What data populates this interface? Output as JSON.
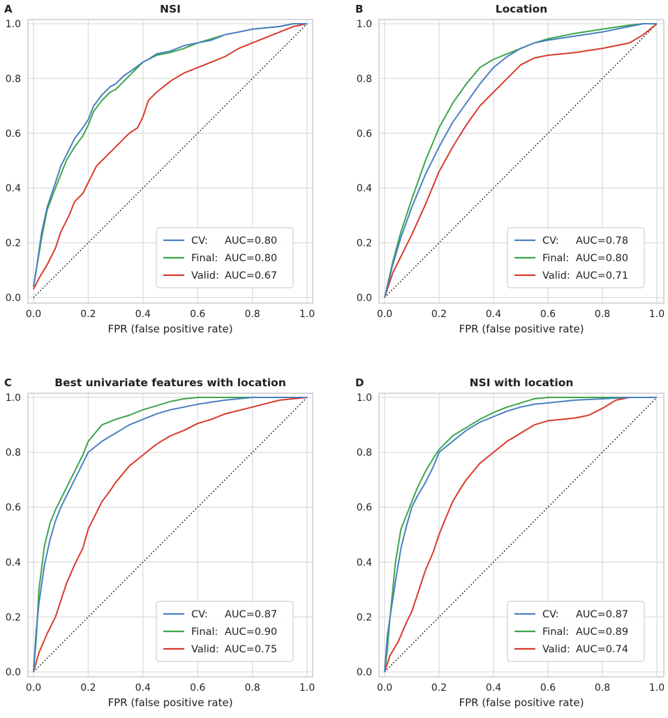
{
  "colors": {
    "cv": "#4a7fc1",
    "final": "#3aa64a",
    "valid": "#d93a2b",
    "grid": "#dcdcdc",
    "frame": "#cfcfcf",
    "diagonal": "#111111",
    "text": "#222222"
  },
  "chart_data": [
    {
      "panel": "A",
      "type": "line",
      "title": "NSI",
      "xlabel": "FPR (false positive rate)",
      "ylabel": "",
      "xlim": [
        0,
        1
      ],
      "ylim": [
        0,
        1
      ],
      "xticks": [
        "0.0",
        "0.2",
        "0.4",
        "0.6",
        "0.8",
        "1.0"
      ],
      "yticks": [
        "0.0",
        "0.2",
        "0.4",
        "0.6",
        "0.8",
        "1.0"
      ],
      "grid": true,
      "legend_position": "lower-right",
      "reference_line": "diagonal",
      "series": [
        {
          "key": "cv",
          "name": "CV:",
          "auc": "AUC=0.80",
          "x": [
            0,
            0.01,
            0.03,
            0.05,
            0.08,
            0.1,
            0.12,
            0.15,
            0.18,
            0.2,
            0.22,
            0.25,
            0.28,
            0.3,
            0.33,
            0.36,
            0.4,
            0.42,
            0.45,
            0.5,
            0.55,
            0.6,
            0.65,
            0.7,
            0.75,
            0.8,
            0.85,
            0.9,
            0.95,
            1.0
          ],
          "y": [
            0.04,
            0.1,
            0.24,
            0.33,
            0.42,
            0.48,
            0.52,
            0.58,
            0.62,
            0.65,
            0.7,
            0.74,
            0.77,
            0.78,
            0.81,
            0.83,
            0.86,
            0.87,
            0.89,
            0.9,
            0.92,
            0.93,
            0.94,
            0.96,
            0.97,
            0.98,
            0.985,
            0.99,
            1.0,
            1.0
          ]
        },
        {
          "key": "final",
          "name": "Final:",
          "auc": "AUC=0.80",
          "x": [
            0,
            0.01,
            0.03,
            0.05,
            0.08,
            0.1,
            0.12,
            0.15,
            0.18,
            0.2,
            0.22,
            0.25,
            0.28,
            0.3,
            0.33,
            0.36,
            0.4,
            0.42,
            0.45,
            0.5,
            0.55,
            0.6,
            0.65,
            0.7,
            0.75,
            0.8,
            0.85,
            0.9,
            0.95,
            1.0
          ],
          "y": [
            0.04,
            0.1,
            0.22,
            0.32,
            0.4,
            0.45,
            0.5,
            0.55,
            0.59,
            0.63,
            0.68,
            0.72,
            0.75,
            0.76,
            0.79,
            0.82,
            0.86,
            0.87,
            0.885,
            0.895,
            0.91,
            0.93,
            0.945,
            0.96,
            0.97,
            0.98,
            0.985,
            0.99,
            1.0,
            1.0
          ]
        },
        {
          "key": "valid",
          "name": "Valid:",
          "auc": "AUC=0.67",
          "x": [
            0,
            0.02,
            0.05,
            0.08,
            0.1,
            0.13,
            0.15,
            0.18,
            0.2,
            0.23,
            0.25,
            0.28,
            0.3,
            0.33,
            0.35,
            0.38,
            0.4,
            0.42,
            0.45,
            0.5,
            0.55,
            0.6,
            0.65,
            0.7,
            0.75,
            0.8,
            0.85,
            0.9,
            0.95,
            1.0
          ],
          "y": [
            0.03,
            0.07,
            0.12,
            0.18,
            0.24,
            0.3,
            0.35,
            0.38,
            0.42,
            0.48,
            0.5,
            0.53,
            0.55,
            0.58,
            0.6,
            0.62,
            0.66,
            0.72,
            0.75,
            0.79,
            0.82,
            0.84,
            0.86,
            0.88,
            0.91,
            0.93,
            0.95,
            0.97,
            0.99,
            1.0
          ]
        }
      ]
    },
    {
      "panel": "B",
      "type": "line",
      "title": "Location",
      "xlabel": "FPR (false positive rate)",
      "ylabel": "",
      "xlim": [
        0,
        1
      ],
      "ylim": [
        0,
        1
      ],
      "xticks": [
        "0.0",
        "0.2",
        "0.4",
        "0.6",
        "0.8",
        "1.0"
      ],
      "yticks": [
        "0.0",
        "0.2",
        "0.4",
        "0.6",
        "0.8",
        "1.0"
      ],
      "grid": true,
      "legend_position": "lower-right",
      "reference_line": "diagonal",
      "series": [
        {
          "key": "cv",
          "name": "CV:",
          "auc": "AUC=0.78",
          "x": [
            0,
            0.03,
            0.06,
            0.1,
            0.15,
            0.2,
            0.25,
            0.3,
            0.35,
            0.4,
            0.45,
            0.5,
            0.55,
            0.6,
            0.7,
            0.8,
            0.9,
            0.95,
            1.0
          ],
          "y": [
            0,
            0.12,
            0.22,
            0.33,
            0.45,
            0.55,
            0.64,
            0.71,
            0.78,
            0.84,
            0.88,
            0.91,
            0.93,
            0.94,
            0.955,
            0.97,
            0.99,
            1.0,
            1.0
          ]
        },
        {
          "key": "final",
          "name": "Final:",
          "auc": "AUC=0.80",
          "x": [
            0,
            0.03,
            0.06,
            0.1,
            0.15,
            0.2,
            0.25,
            0.3,
            0.35,
            0.4,
            0.45,
            0.5,
            0.55,
            0.6,
            0.7,
            0.8,
            0.9,
            0.95,
            1.0
          ],
          "y": [
            0,
            0.13,
            0.24,
            0.36,
            0.5,
            0.62,
            0.71,
            0.78,
            0.84,
            0.87,
            0.89,
            0.91,
            0.93,
            0.945,
            0.965,
            0.98,
            0.995,
            1.0,
            1.0
          ]
        },
        {
          "key": "valid",
          "name": "Valid:",
          "auc": "AUC=0.71",
          "x": [
            0,
            0.03,
            0.06,
            0.1,
            0.15,
            0.2,
            0.25,
            0.3,
            0.35,
            0.4,
            0.45,
            0.5,
            0.55,
            0.6,
            0.7,
            0.8,
            0.9,
            0.95,
            1.0
          ],
          "y": [
            0,
            0.09,
            0.15,
            0.23,
            0.34,
            0.46,
            0.55,
            0.63,
            0.7,
            0.75,
            0.8,
            0.85,
            0.875,
            0.885,
            0.895,
            0.91,
            0.93,
            0.96,
            1.0
          ]
        }
      ]
    },
    {
      "panel": "C",
      "type": "line",
      "title": "Best univariate features with location",
      "xlabel": "FPR (false positive rate)",
      "ylabel": "",
      "xlim": [
        0,
        1
      ],
      "ylim": [
        0,
        1
      ],
      "xticks": [
        "0.0",
        "0.2",
        "0.4",
        "0.6",
        "0.8",
        "1.0"
      ],
      "yticks": [
        "0.0",
        "0.2",
        "0.4",
        "0.6",
        "0.8",
        "1.0"
      ],
      "grid": true,
      "legend_position": "lower-right",
      "reference_line": "diagonal",
      "series": [
        {
          "key": "cv",
          "name": "CV:",
          "auc": "AUC=0.87",
          "x": [
            0,
            0.01,
            0.02,
            0.04,
            0.06,
            0.08,
            0.1,
            0.12,
            0.15,
            0.18,
            0.2,
            0.25,
            0.3,
            0.35,
            0.4,
            0.45,
            0.5,
            0.55,
            0.6,
            0.7,
            0.8,
            0.9,
            1.0
          ],
          "y": [
            0,
            0.15,
            0.25,
            0.39,
            0.48,
            0.55,
            0.6,
            0.64,
            0.7,
            0.76,
            0.8,
            0.84,
            0.87,
            0.9,
            0.92,
            0.94,
            0.955,
            0.965,
            0.975,
            0.99,
            1.0,
            1.0,
            1.0
          ]
        },
        {
          "key": "final",
          "name": "Final:",
          "auc": "AUC=0.90",
          "x": [
            0,
            0.01,
            0.02,
            0.04,
            0.06,
            0.08,
            0.1,
            0.12,
            0.15,
            0.18,
            0.2,
            0.25,
            0.3,
            0.35,
            0.4,
            0.45,
            0.5,
            0.55,
            0.6,
            0.7,
            0.8,
            0.9,
            1.0
          ],
          "y": [
            0,
            0.12,
            0.3,
            0.46,
            0.54,
            0.59,
            0.63,
            0.67,
            0.73,
            0.79,
            0.84,
            0.9,
            0.92,
            0.935,
            0.955,
            0.97,
            0.985,
            0.995,
            1.0,
            1.0,
            1.0,
            1.0,
            1.0
          ]
        },
        {
          "key": "valid",
          "name": "Valid:",
          "auc": "AUC=0.75",
          "x": [
            0,
            0.02,
            0.05,
            0.08,
            0.1,
            0.12,
            0.15,
            0.18,
            0.2,
            0.22,
            0.25,
            0.28,
            0.3,
            0.35,
            0.4,
            0.45,
            0.5,
            0.55,
            0.6,
            0.65,
            0.7,
            0.8,
            0.9,
            1.0
          ],
          "y": [
            0,
            0.07,
            0.14,
            0.2,
            0.26,
            0.32,
            0.39,
            0.45,
            0.52,
            0.56,
            0.62,
            0.66,
            0.69,
            0.75,
            0.79,
            0.83,
            0.86,
            0.88,
            0.905,
            0.92,
            0.94,
            0.965,
            0.99,
            1.0
          ]
        }
      ]
    },
    {
      "panel": "D",
      "type": "line",
      "title": "NSI with location",
      "xlabel": "FPR (false positive rate)",
      "ylabel": "",
      "xlim": [
        0,
        1
      ],
      "ylim": [
        0,
        1
      ],
      "xticks": [
        "0.0",
        "0.2",
        "0.4",
        "0.6",
        "0.8",
        "1.0"
      ],
      "yticks": [
        "0.0",
        "0.2",
        "0.4",
        "0.6",
        "0.8",
        "1.0"
      ],
      "grid": true,
      "legend_position": "lower-right",
      "reference_line": "diagonal",
      "series": [
        {
          "key": "cv",
          "name": "CV:",
          "auc": "AUC=0.87",
          "x": [
            0,
            0.01,
            0.02,
            0.04,
            0.06,
            0.08,
            0.1,
            0.12,
            0.15,
            0.18,
            0.2,
            0.25,
            0.3,
            0.35,
            0.4,
            0.45,
            0.5,
            0.55,
            0.6,
            0.7,
            0.8,
            0.9,
            1.0
          ],
          "y": [
            0,
            0.13,
            0.2,
            0.33,
            0.45,
            0.53,
            0.6,
            0.64,
            0.69,
            0.75,
            0.8,
            0.84,
            0.88,
            0.91,
            0.93,
            0.95,
            0.965,
            0.975,
            0.98,
            0.99,
            0.995,
            1.0,
            1.0
          ]
        },
        {
          "key": "final",
          "name": "Final:",
          "auc": "AUC=0.89",
          "x": [
            0,
            0.01,
            0.02,
            0.04,
            0.06,
            0.08,
            0.1,
            0.12,
            0.15,
            0.18,
            0.2,
            0.25,
            0.3,
            0.35,
            0.4,
            0.45,
            0.5,
            0.55,
            0.6,
            0.7,
            0.8,
            0.9,
            1.0
          ],
          "y": [
            0,
            0.08,
            0.2,
            0.4,
            0.52,
            0.57,
            0.62,
            0.67,
            0.73,
            0.78,
            0.81,
            0.86,
            0.89,
            0.92,
            0.945,
            0.965,
            0.98,
            0.995,
            1.0,
            1.0,
            1.0,
            1.0,
            1.0
          ]
        },
        {
          "key": "valid",
          "name": "Valid:",
          "auc": "AUC=0.74",
          "x": [
            0,
            0.02,
            0.05,
            0.08,
            0.1,
            0.12,
            0.15,
            0.18,
            0.2,
            0.22,
            0.25,
            0.28,
            0.3,
            0.35,
            0.4,
            0.45,
            0.5,
            0.55,
            0.6,
            0.7,
            0.75,
            0.8,
            0.85,
            0.9,
            1.0
          ],
          "y": [
            0,
            0.06,
            0.11,
            0.18,
            0.22,
            0.28,
            0.37,
            0.44,
            0.5,
            0.55,
            0.62,
            0.67,
            0.7,
            0.76,
            0.8,
            0.84,
            0.87,
            0.9,
            0.915,
            0.925,
            0.935,
            0.96,
            0.99,
            1.0,
            1.0
          ]
        }
      ]
    }
  ]
}
